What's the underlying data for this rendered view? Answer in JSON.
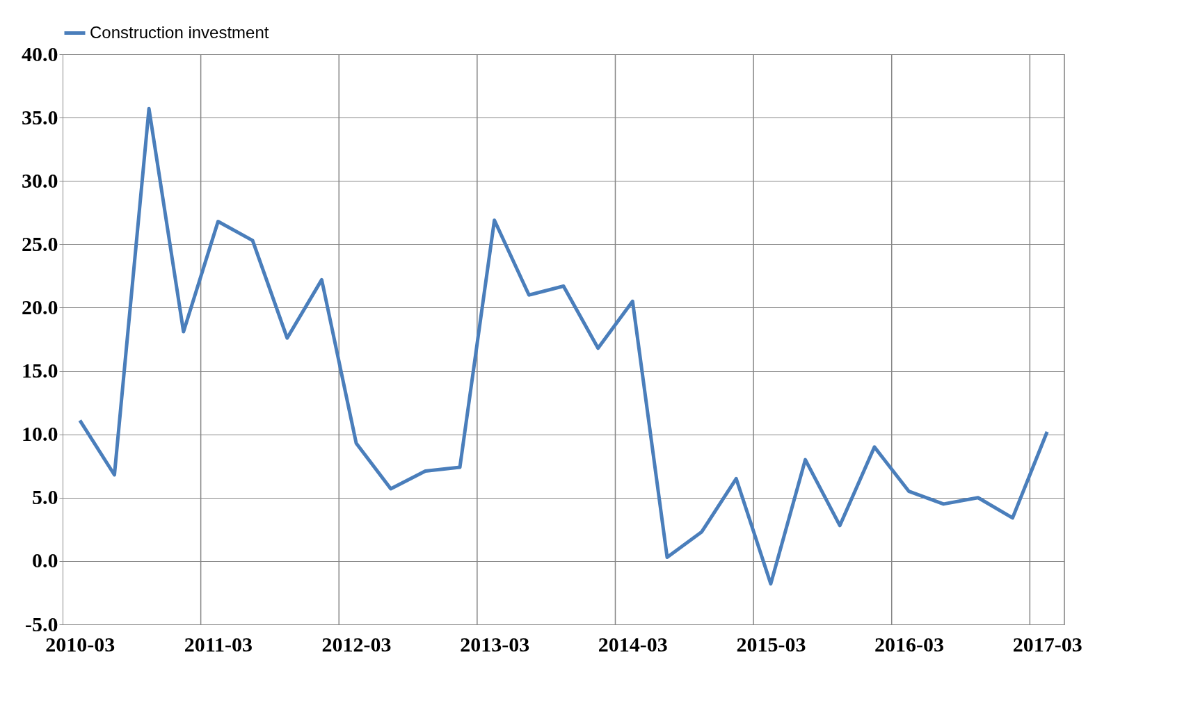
{
  "chart_data": {
    "type": "line",
    "categories": [
      "2010-03",
      null,
      null,
      null,
      "2011-03",
      null,
      null,
      null,
      "2012-03",
      null,
      null,
      null,
      "2013-03",
      null,
      null,
      null,
      "2014-03",
      null,
      null,
      null,
      "2015-03",
      null,
      null,
      null,
      "2016-03",
      null,
      null,
      null,
      "2017-03"
    ],
    "series": [
      {
        "name": "Construction investment",
        "color": "#4a7ebb",
        "values": [
          11.1,
          6.8,
          35.7,
          18.1,
          26.8,
          25.3,
          17.6,
          22.2,
          9.3,
          5.7,
          7.1,
          7.4,
          26.9,
          21.0,
          21.7,
          16.8,
          20.5,
          0.3,
          2.3,
          6.5,
          -1.8,
          8.0,
          2.8,
          9.0,
          5.5,
          4.5,
          5.0,
          3.4,
          10.2
        ]
      }
    ],
    "ylim": [
      -5,
      40
    ],
    "yticks": [
      {
        "value": -5,
        "label": "-5.0"
      },
      {
        "value": 0,
        "label": "0.0"
      },
      {
        "value": 5,
        "label": "5.0"
      },
      {
        "value": 10,
        "label": "10.0"
      },
      {
        "value": 15,
        "label": "15.0"
      },
      {
        "value": 20,
        "label": "20.0"
      },
      {
        "value": 25,
        "label": "25.0"
      },
      {
        "value": 30,
        "label": "30.0"
      },
      {
        "value": 35,
        "label": "35.0"
      },
      {
        "value": 40,
        "label": "40.0"
      }
    ],
    "grid": true,
    "legend": "top",
    "marker": "none",
    "line_style": "solid"
  }
}
